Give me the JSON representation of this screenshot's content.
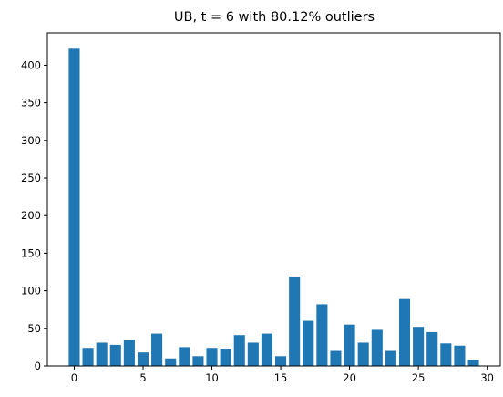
{
  "chart_data": {
    "type": "bar",
    "title": "UB,  t = 6 with 80.12% outliers",
    "xlabel": "",
    "ylabel": "",
    "categories": [
      0,
      1,
      2,
      3,
      4,
      5,
      6,
      7,
      8,
      9,
      10,
      11,
      12,
      13,
      14,
      15,
      16,
      17,
      18,
      19,
      20,
      21,
      22,
      23,
      24,
      25,
      26,
      27,
      28,
      29
    ],
    "values": [
      422,
      24,
      31,
      28,
      35,
      18,
      43,
      10,
      25,
      13,
      24,
      23,
      41,
      31,
      43,
      13,
      119,
      60,
      82,
      20,
      55,
      31,
      48,
      20,
      89,
      52,
      45,
      30,
      27,
      8
    ],
    "xlim": [
      -1.95,
      30.95
    ],
    "ylim": [
      0,
      443
    ],
    "xticks": [
      0,
      5,
      10,
      15,
      20,
      25,
      30
    ],
    "yticks": [
      0,
      50,
      100,
      150,
      200,
      250,
      300,
      350,
      400
    ],
    "bar_color": "#1f77b4",
    "grid": false,
    "legend": "none"
  }
}
